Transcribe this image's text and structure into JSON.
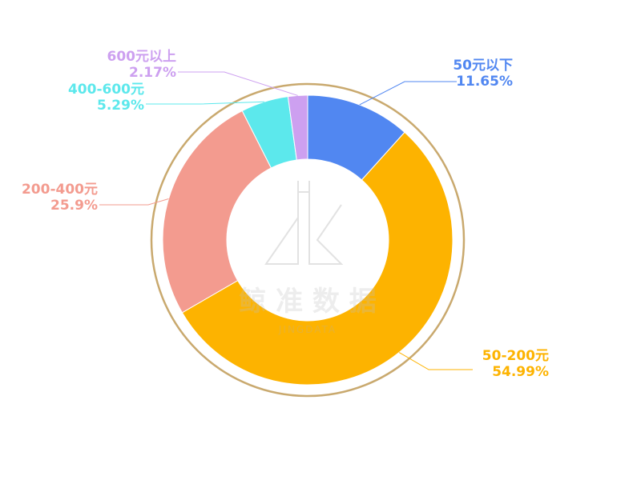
{
  "chart_data": {
    "type": "pie",
    "variant": "donut",
    "categories": [
      "50元以下",
      "50-200元",
      "200-400元",
      "400-600元",
      "600元以上"
    ],
    "values": [
      11.65,
      54.99,
      25.9,
      5.29,
      2.17
    ],
    "value_labels": [
      "11.65%",
      "54.99%",
      "25.9%",
      "5.29%",
      "2.17%"
    ],
    "colors": [
      "#5187F1",
      "#FDB300",
      "#F39B8F",
      "#5CE8EC",
      "#CDA0F0"
    ],
    "ring_color": "#C9A96E",
    "legend": "none"
  },
  "watermark": {
    "cn": "鲸 准 数 据",
    "en": "JINGDATA"
  }
}
